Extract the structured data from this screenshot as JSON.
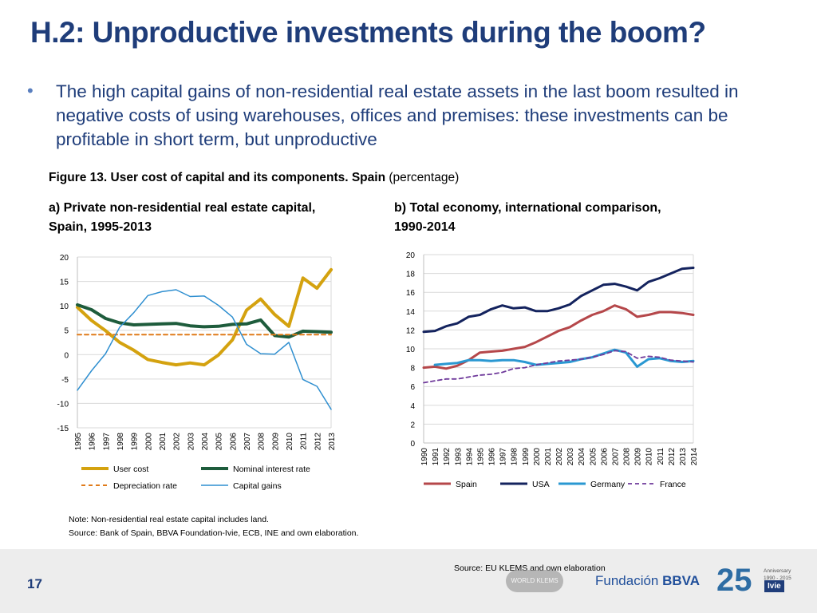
{
  "title": "H.2: Unproductive investments during the boom?",
  "bullet": {
    "mark": "•",
    "text": "The high capital gains of non-residential real estate assets in the last boom resulted in negative costs of using warehouses, offices and premises: these investments can be profitable in short term, but unproductive"
  },
  "figure": {
    "caption_bold": "Figure 13. User cost of capital and its components. Spain",
    "caption_rest": " (percentage)",
    "subtitle_a_line1": "a) Private non-residential real estate capital,",
    "subtitle_a_line2": "Spain, 1995-2013",
    "subtitle_b_line1": "b) Total economy, international comparison,",
    "subtitle_b_line2": "1990-2014"
  },
  "note": {
    "line1": "Note: Non-residential real estate capital includes land.",
    "line2": "Source: Bank of Spain, BBVA Foundation-Ivie, ECB, INE and own elaboration."
  },
  "footer": {
    "page_number": "17",
    "source_b": "Source: EU KLEMS and own elaboration",
    "worldklems": "WORLD KLEMS",
    "fundacion": "Fundación",
    "bbva": "BBVA",
    "anniv_number": "25",
    "anniversary_line1": "Anniversary",
    "anniversary_line2": "1990 - 2015",
    "ivie": "Ivie"
  },
  "colors": {
    "title": "#1f3d7a",
    "user_cost": "#d4a20f",
    "nominal_rate": "#1e5c3c",
    "depreciation": "#e07b1a",
    "capital_gains": "#2f8fd0",
    "spain": "#b5474a",
    "usa": "#14235e",
    "germany": "#2a98d2",
    "france": "#6f3a9b"
  },
  "chart_data": [
    {
      "type": "line",
      "id": "a",
      "ylim": [
        -15,
        20
      ],
      "yticks": [
        20,
        15,
        10,
        5,
        0,
        -5,
        -10,
        -15
      ],
      "categories": [
        "1995",
        "1996",
        "1997",
        "1998",
        "1999",
        "2000",
        "2001",
        "2002",
        "2003",
        "2004",
        "2005",
        "2006",
        "2007",
        "2008",
        "2009",
        "2010",
        "2011",
        "2012",
        "2013"
      ],
      "series": [
        {
          "name": "User cost",
          "color": "#d4a20f",
          "dash": false,
          "width": 4,
          "values": [
            9.7,
            7.0,
            4.9,
            2.5,
            0.9,
            -1.0,
            -1.6,
            -2.1,
            -1.7,
            -2.1,
            -0.1,
            3.0,
            9.1,
            11.4,
            8.2,
            5.8,
            15.7,
            13.6,
            17.4
          ]
        },
        {
          "name": "Nominal interest rate",
          "color": "#1e5c3c",
          "dash": false,
          "width": 4,
          "values": [
            10.2,
            9.2,
            7.4,
            6.5,
            6.1,
            6.2,
            6.3,
            6.4,
            5.9,
            5.7,
            5.8,
            6.2,
            6.3,
            7.1,
            3.9,
            3.6,
            4.8,
            4.7,
            4.6
          ]
        },
        {
          "name": "Depreciation rate",
          "color": "#e07b1a",
          "dash": true,
          "width": 2,
          "values": [
            4.1,
            4.1,
            4.1,
            4.1,
            4.1,
            4.1,
            4.1,
            4.1,
            4.1,
            4.1,
            4.1,
            4.1,
            4.1,
            4.1,
            4.1,
            4.1,
            4.1,
            4.1,
            4.1
          ]
        },
        {
          "name": "Capital gains",
          "color": "#2f8fd0",
          "dash": false,
          "width": 1.5,
          "values": [
            -7.3,
            -3.3,
            0.2,
            5.6,
            8.6,
            12.1,
            12.9,
            13.3,
            11.9,
            12.0,
            10.1,
            7.7,
            2.1,
            0.2,
            0.1,
            2.5,
            -5.1,
            -6.5,
            -11.2
          ]
        }
      ],
      "legend": [
        {
          "label": "User cost",
          "color": "#d4a20f",
          "dash": false,
          "width": 4
        },
        {
          "label": "Nominal interest rate",
          "color": "#1e5c3c",
          "dash": false,
          "width": 4
        },
        {
          "label": "Depreciation rate",
          "color": "#e07b1a",
          "dash": true,
          "width": 2
        },
        {
          "label": "Capital gains",
          "color": "#2f8fd0",
          "dash": false,
          "width": 1.5
        }
      ]
    },
    {
      "type": "line",
      "id": "b",
      "ylim": [
        0,
        20
      ],
      "yticks": [
        20,
        18,
        16,
        14,
        12,
        10,
        8,
        6,
        4,
        2,
        0
      ],
      "categories": [
        "1990",
        "1991",
        "1992",
        "1993",
        "1994",
        "1995",
        "1996",
        "1997",
        "1998",
        "1999",
        "2000",
        "2001",
        "2002",
        "2003",
        "2004",
        "2005",
        "2006",
        "2007",
        "2008",
        "2009",
        "2010",
        "2011",
        "2012",
        "2013",
        "2014"
      ],
      "series": [
        {
          "name": "Spain",
          "color": "#b5474a",
          "dash": false,
          "width": 3,
          "values": [
            8.0,
            8.1,
            7.9,
            8.2,
            8.8,
            9.6,
            9.7,
            9.8,
            10.0,
            10.2,
            10.7,
            11.3,
            11.9,
            12.3,
            13.0,
            13.6,
            14.0,
            14.6,
            14.2,
            13.4,
            13.6,
            13.9,
            13.9,
            13.8,
            13.6
          ]
        },
        {
          "name": "USA",
          "color": "#14235e",
          "dash": false,
          "width": 3,
          "values": [
            11.8,
            11.9,
            12.4,
            12.7,
            13.4,
            13.6,
            14.2,
            14.6,
            14.3,
            14.4,
            14.0,
            14.0,
            14.3,
            14.7,
            15.6,
            16.2,
            16.8,
            16.9,
            16.6,
            16.2,
            17.1,
            17.5,
            18.0,
            18.5,
            18.6
          ]
        },
        {
          "name": "Germany",
          "color": "#2a98d2",
          "dash": false,
          "width": 3,
          "values": [
            null,
            8.3,
            8.4,
            8.5,
            8.8,
            8.8,
            8.7,
            8.8,
            8.8,
            8.6,
            8.3,
            8.4,
            8.5,
            8.6,
            8.9,
            9.1,
            9.5,
            9.9,
            9.6,
            8.1,
            8.9,
            9.0,
            8.7,
            8.6,
            8.7
          ]
        },
        {
          "name": "France",
          "color": "#6f3a9b",
          "dash": true,
          "width": 1.8,
          "values": [
            6.4,
            6.6,
            6.8,
            6.8,
            7.0,
            7.2,
            7.3,
            7.5,
            7.9,
            8.0,
            8.3,
            8.5,
            8.7,
            8.8,
            8.9,
            9.1,
            9.4,
            9.8,
            9.7,
            9.0,
            9.2,
            9.1,
            8.8,
            8.7,
            8.6
          ]
        }
      ],
      "legend": [
        {
          "label": "Spain",
          "color": "#b5474a",
          "dash": false,
          "width": 3
        },
        {
          "label": "USA",
          "color": "#14235e",
          "dash": false,
          "width": 3
        },
        {
          "label": "Germany",
          "color": "#2a98d2",
          "dash": false,
          "width": 3
        },
        {
          "label": "France",
          "color": "#6f3a9b",
          "dash": true,
          "width": 1.8
        }
      ]
    }
  ]
}
